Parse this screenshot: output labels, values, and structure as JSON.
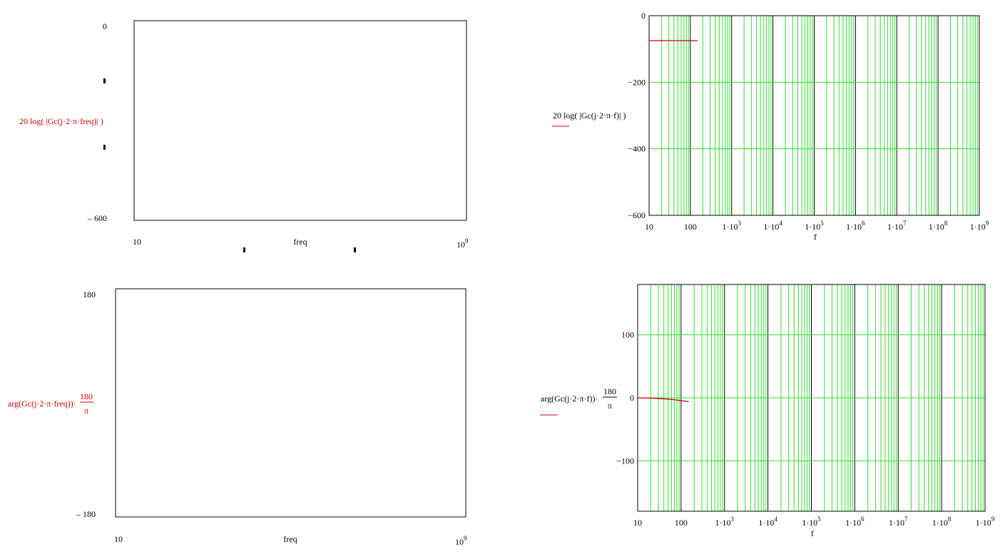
{
  "colors": {
    "grid": "#33dd33",
    "major_grid": "#000000",
    "trace": "#cc0000",
    "text": "#000000",
    "label": "#cc0000"
  },
  "chart_data": [
    {
      "type": "line",
      "id": "mag-empty",
      "ylabel": "20 log( |Gc(j·2·π·freq)| )",
      "xlabel": "freq",
      "x_scale": "log",
      "xlim_labels": [
        "10",
        "10^9"
      ],
      "ylim_labels": [
        "0",
        "– 600"
      ],
      "ylim": [
        -600,
        0
      ],
      "grid": false,
      "series": []
    },
    {
      "type": "line",
      "id": "mag",
      "ylabel": "20 log( |Gc(j·2·π·f)| )",
      "xlabel": "f",
      "x_scale": "log",
      "xlim": [
        10,
        1000000000
      ],
      "ylim": [
        -600,
        0
      ],
      "y_ticks": [
        "0",
        "−200",
        "−400",
        "−600"
      ],
      "x_ticks": [
        "10",
        "100",
        "1·10^3",
        "1·10^4",
        "1·10^5",
        "1·10^6",
        "1·10^7",
        "1·10^8",
        "1·10^9"
      ],
      "grid": true,
      "series": [
        {
          "x": [
            10,
            150
          ],
          "y": [
            -75,
            -75
          ]
        }
      ]
    },
    {
      "type": "line",
      "id": "phase-empty",
      "ylabel": "arg(Gc(j·2·π·freq))·180/π",
      "xlabel": "freq",
      "x_scale": "log",
      "xlim_labels": [
        "10",
        "10^9"
      ],
      "ylim_labels": [
        "180",
        "– 180"
      ],
      "ylim": [
        -180,
        180
      ],
      "grid": false,
      "series": []
    },
    {
      "type": "line",
      "id": "phase",
      "ylabel": "arg(Gc(j·2·π·f))·180/π",
      "xlabel": "f",
      "x_scale": "log",
      "xlim": [
        10,
        1000000000
      ],
      "ylim": [
        -180,
        180
      ],
      "y_ticks": [
        "100",
        "0",
        "−100"
      ],
      "x_ticks": [
        "10",
        "100",
        "1·10^3",
        "1·10^4",
        "1·10^5",
        "1·10^6",
        "1·10^7",
        "1·10^8",
        "1·10^9"
      ],
      "grid": true,
      "series": [
        {
          "x": [
            10,
            20,
            40,
            70,
            100,
            150
          ],
          "y": [
            0,
            -0.5,
            -1.5,
            -3,
            -4.5,
            -6
          ]
        }
      ]
    }
  ]
}
